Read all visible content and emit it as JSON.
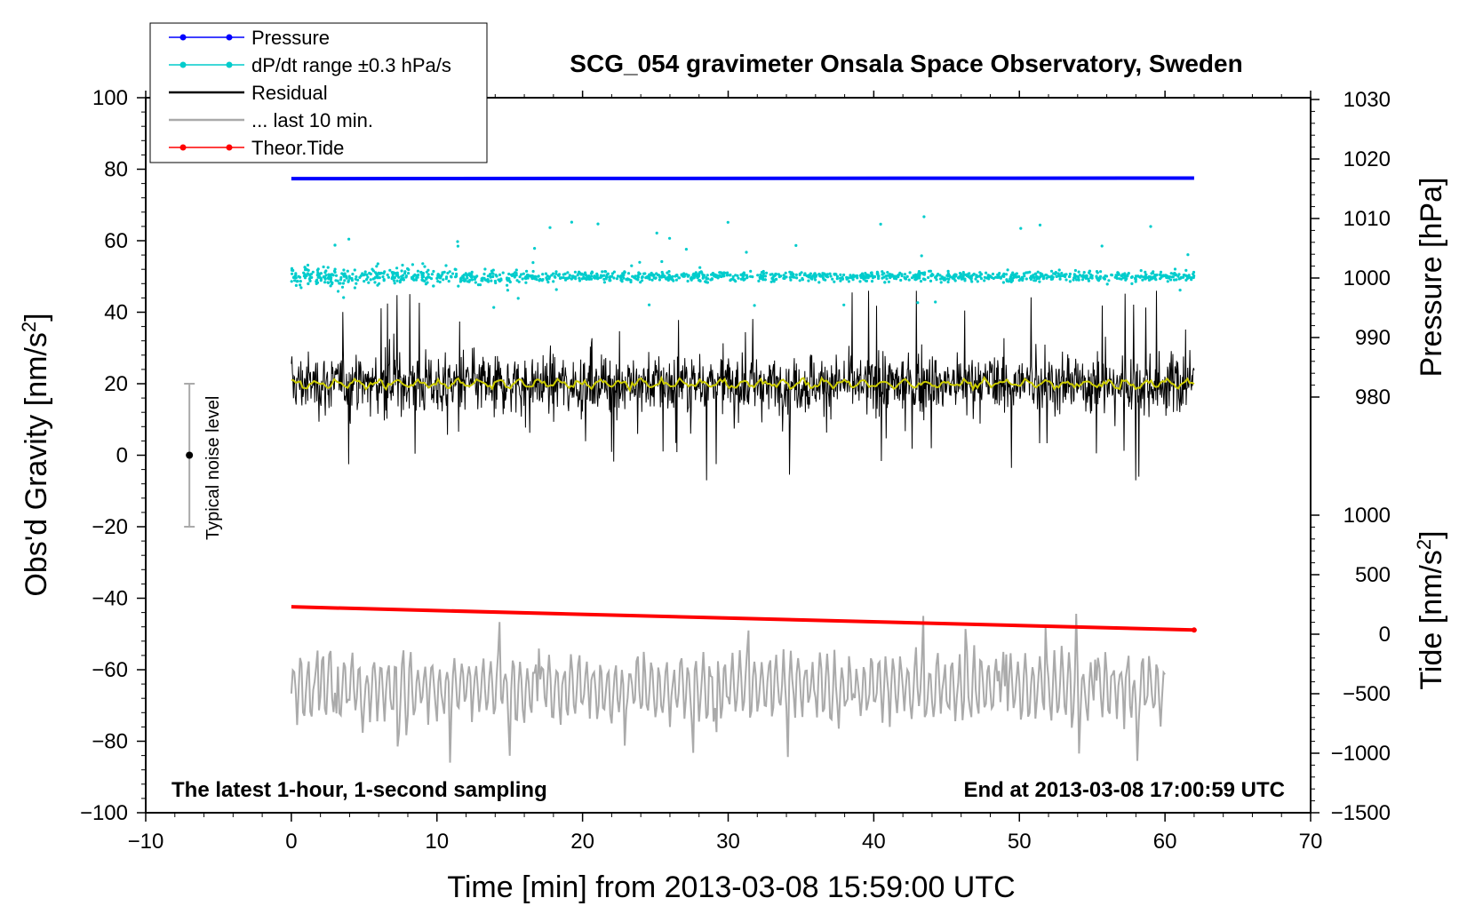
{
  "chart_data": {
    "type": "line",
    "title": "SCG_054 gravimeter Onsala Space Observatory, Sweden",
    "xlabel": "Time [min] from 2013-03-08 15:59:00 UTC",
    "ylabel_left": "Obs'd Gravity [nm/s",
    "ylabel_left_sup": "2",
    "ylabel_left_close": "]",
    "ylabel_right_pressure": "Pressure [hPa]",
    "ylabel_right_tide": "Tide [nm/s",
    "ylabel_right_tide_sup": "2",
    "ylabel_right_tide_close": "]",
    "xlim": [
      -10,
      70
    ],
    "ylim_left": [
      -100,
      100
    ],
    "x_ticks": [
      "−10",
      "0",
      "10",
      "20",
      "30",
      "40",
      "50",
      "60",
      "70"
    ],
    "x_tick_values": [
      -10,
      0,
      10,
      20,
      30,
      40,
      50,
      60,
      70
    ],
    "y_left_ticks": [
      "100",
      "80",
      "60",
      "40",
      "20",
      "0",
      "−20",
      "−40",
      "−60",
      "−80",
      "−100"
    ],
    "y_left_tick_values": [
      100,
      80,
      60,
      40,
      20,
      0,
      -20,
      -40,
      -60,
      -80,
      -100
    ],
    "pressure_axis": {
      "ticks": [
        "1030",
        "1020",
        "1010",
        "1000",
        "990",
        "980"
      ],
      "tick_values": [
        1030,
        1020,
        1010,
        1000,
        990,
        980
      ],
      "range": [
        980,
        1030
      ]
    },
    "tide_axis": {
      "ticks": [
        "1000",
        "500",
        "0",
        "−500",
        "−1000",
        "−1500"
      ],
      "tick_values": [
        1000,
        500,
        0,
        -500,
        -1000,
        -1500
      ],
      "range": [
        -1500,
        1000
      ]
    },
    "legend": [
      {
        "label": "Pressure",
        "color": "#0000ff",
        "marker": true
      },
      {
        "label": "dP/dt range ±0.3 hPa/s",
        "color": "#00cccc",
        "marker": true
      },
      {
        "label": "Residual",
        "color": "#000000",
        "marker": false
      },
      {
        "label": "... last 10 min.",
        "color": "#aaaaaa",
        "marker": false
      },
      {
        "label": "Theor.Tide",
        "color": "#ff0000",
        "marker": true
      }
    ],
    "series": [
      {
        "name": "Pressure",
        "color": "#0000ff",
        "axis": "pressure",
        "x_range": [
          0,
          62
        ],
        "values_hpa": [
          1016.7,
          1016.8
        ]
      },
      {
        "name": "dP/dt range ±0.3 hPa/s",
        "color": "#00cccc",
        "axis": "left",
        "x_range": [
          0,
          62
        ],
        "center": 50,
        "spread": 3
      },
      {
        "name": "Residual",
        "color": "#000000",
        "axis": "left",
        "x_range": [
          0,
          62
        ],
        "center": 20,
        "range": [
          -7,
          46
        ]
      },
      {
        "name": "Residual smoothed",
        "color": "#cccc00",
        "axis": "left",
        "x_range": [
          0,
          62
        ],
        "center": 20
      },
      {
        "name": "... last 10 min.",
        "color": "#aaaaaa",
        "axis": "left",
        "x_range": [
          0,
          60
        ],
        "center": -65,
        "range": [
          -86,
          -35
        ]
      },
      {
        "name": "Theor.Tide",
        "color": "#ff0000",
        "axis": "tide",
        "x_range": [
          0,
          62
        ],
        "values_nm_s2": [
          230,
          35
        ]
      }
    ],
    "noise_level": {
      "label": "Typical noise level",
      "x": -7,
      "center": 0,
      "range": [
        -20,
        20
      ]
    },
    "annotations": {
      "bottom_left": "The latest 1-hour, 1-second sampling",
      "bottom_right": "End at 2013-03-08 17:00:59 UTC"
    }
  },
  "colors": {
    "pressure": "#0000ff",
    "dpdt": "#00cccc",
    "residual": "#000000",
    "smooth": "#cccc00",
    "last10": "#aaaaaa",
    "tide": "#ff0000"
  }
}
